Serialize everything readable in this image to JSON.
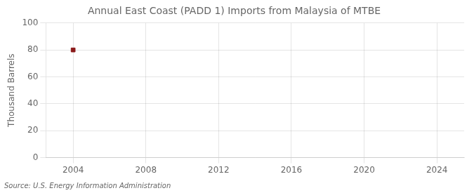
{
  "chart_data": {
    "type": "scatter",
    "title": "Annual East Coast (PADD 1) Imports from Malaysia of MTBE",
    "ylabel": "Thousand Barrels",
    "annotation": "Source: U.S. Energy Information Administration",
    "x": [
      2004
    ],
    "values": [
      80
    ],
    "color": "#8b1a1a",
    "marker": "square",
    "xlim": [
      2002.5,
      2025.5
    ],
    "xticks": [
      2004,
      2008,
      2012,
      2016,
      2020,
      2024
    ],
    "ylim": [
      0,
      100
    ],
    "yticks": [
      0,
      20,
      40,
      60,
      80,
      100
    ],
    "grid": true
  }
}
